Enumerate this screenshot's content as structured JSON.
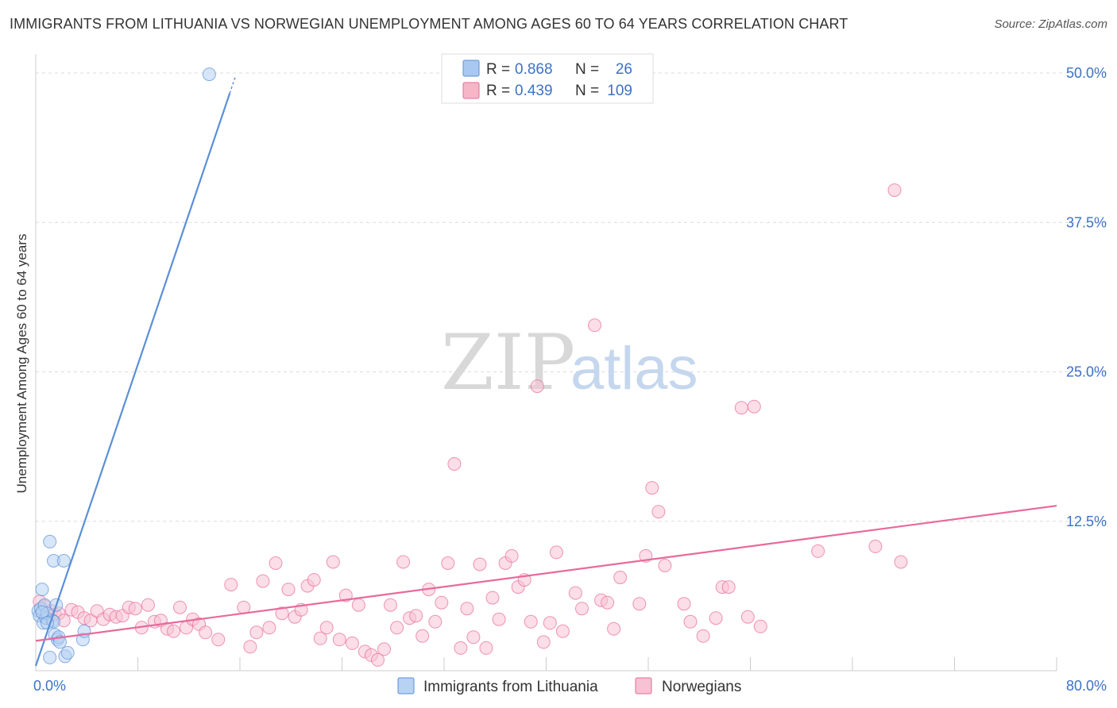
{
  "title": "IMMIGRANTS FROM LITHUANIA VS NORWEGIAN UNEMPLOYMENT AMONG AGES 60 TO 64 YEARS CORRELATION CHART",
  "source": "Source: ZipAtlas.com",
  "watermark": {
    "zip": "ZIP",
    "atlas": "atlas"
  },
  "legend_top": [
    {
      "r_label": "R =",
      "r_value": "0.868",
      "n_label": "N =",
      "n_value": "26",
      "color": "#a9c8f0"
    },
    {
      "r_label": "R =",
      "r_value": "0.439",
      "n_label": "N =",
      "n_value": "109",
      "color": "#f6b6c8"
    }
  ],
  "chart_data": {
    "type": "scatter",
    "title": "IMMIGRANTS FROM LITHUANIA VS NORWEGIAN UNEMPLOYMENT AMONG AGES 60 TO 64 YEARS CORRELATION CHART",
    "xlabel": "",
    "ylabel": "Unemployment Among Ages 60 to 64 years",
    "xlim": [
      0,
      80
    ],
    "ylim": [
      0,
      51
    ],
    "x_tick_labels": [
      "0.0%",
      "80.0%"
    ],
    "y_ticks": [
      12.5,
      25.0,
      37.5,
      50.0
    ],
    "y_tick_labels": [
      "12.5%",
      "25.0%",
      "37.5%",
      "50.0%"
    ],
    "grid": true,
    "series": [
      {
        "name": "Immigrants from Lithuania",
        "color": "#5b8fd6",
        "fill": "#b7d2f3",
        "points": [
          [
            0.2,
            5.0
          ],
          [
            0.3,
            4.6
          ],
          [
            0.4,
            5.2
          ],
          [
            0.5,
            6.8
          ],
          [
            0.6,
            4.0
          ],
          [
            0.7,
            5.5
          ],
          [
            0.8,
            4.4
          ],
          [
            0.9,
            4.8
          ],
          [
            1.1,
            10.8
          ],
          [
            1.3,
            4.2
          ],
          [
            1.4,
            9.2
          ],
          [
            1.5,
            3.0
          ],
          [
            1.6,
            5.5
          ],
          [
            1.7,
            2.6
          ],
          [
            1.8,
            2.8
          ],
          [
            1.9,
            2.4
          ],
          [
            2.2,
            9.2
          ],
          [
            2.3,
            1.2
          ],
          [
            2.5,
            1.5
          ],
          [
            3.7,
            2.6
          ],
          [
            3.8,
            3.3
          ],
          [
            13.6,
            49.9
          ],
          [
            1.1,
            1.1
          ],
          [
            0.5,
            4.9
          ],
          [
            1.4,
            4.1
          ],
          [
            0.9,
            4.0
          ]
        ],
        "trend": {
          "x0": 0.0,
          "y0": 0.4,
          "x1": 15.2,
          "y1": 48.3
        }
      },
      {
        "name": "Norwegians",
        "color": "#e86a9a",
        "fill": "#f7c2d3",
        "points": [
          [
            0.3,
            5.8
          ],
          [
            0.5,
            4.9
          ],
          [
            0.7,
            5.4
          ],
          [
            0.9,
            4.4
          ],
          [
            1.2,
            5.0
          ],
          [
            1.5,
            4.7
          ],
          [
            1.8,
            4.8
          ],
          [
            2.2,
            4.2
          ],
          [
            2.8,
            5.1
          ],
          [
            3.3,
            4.9
          ],
          [
            3.8,
            4.4
          ],
          [
            4.3,
            4.2
          ],
          [
            4.8,
            5.0
          ],
          [
            5.3,
            4.3
          ],
          [
            5.8,
            4.7
          ],
          [
            6.3,
            4.5
          ],
          [
            6.8,
            4.6
          ],
          [
            7.3,
            5.3
          ],
          [
            7.8,
            5.2
          ],
          [
            8.3,
            3.6
          ],
          [
            8.8,
            5.5
          ],
          [
            9.3,
            4.1
          ],
          [
            9.8,
            4.2
          ],
          [
            10.3,
            3.5
          ],
          [
            10.8,
            3.3
          ],
          [
            11.3,
            5.3
          ],
          [
            11.8,
            3.6
          ],
          [
            12.3,
            4.3
          ],
          [
            12.8,
            3.9
          ],
          [
            13.3,
            3.2
          ],
          [
            14.3,
            2.6
          ],
          [
            15.3,
            7.2
          ],
          [
            16.3,
            5.3
          ],
          [
            16.8,
            2.0
          ],
          [
            17.3,
            3.2
          ],
          [
            17.8,
            7.5
          ],
          [
            18.3,
            3.6
          ],
          [
            18.8,
            9.0
          ],
          [
            19.3,
            4.8
          ],
          [
            19.8,
            6.8
          ],
          [
            20.3,
            4.5
          ],
          [
            20.8,
            5.1
          ],
          [
            21.3,
            7.1
          ],
          [
            21.8,
            7.6
          ],
          [
            22.3,
            2.7
          ],
          [
            22.8,
            3.6
          ],
          [
            23.3,
            9.1
          ],
          [
            23.8,
            2.6
          ],
          [
            24.3,
            6.3
          ],
          [
            24.8,
            2.3
          ],
          [
            25.3,
            5.5
          ],
          [
            25.8,
            1.6
          ],
          [
            26.3,
            1.3
          ],
          [
            26.8,
            0.9
          ],
          [
            27.3,
            1.8
          ],
          [
            27.8,
            5.5
          ],
          [
            28.3,
            3.6
          ],
          [
            28.8,
            9.1
          ],
          [
            29.3,
            4.4
          ],
          [
            29.8,
            4.6
          ],
          [
            30.3,
            2.9
          ],
          [
            30.8,
            6.8
          ],
          [
            31.3,
            4.1
          ],
          [
            31.8,
            5.7
          ],
          [
            32.3,
            9.0
          ],
          [
            32.8,
            17.3
          ],
          [
            33.3,
            1.9
          ],
          [
            33.8,
            5.2
          ],
          [
            34.3,
            2.8
          ],
          [
            34.8,
            8.9
          ],
          [
            35.3,
            1.9
          ],
          [
            35.8,
            6.1
          ],
          [
            36.3,
            4.3
          ],
          [
            36.8,
            9.0
          ],
          [
            37.3,
            9.6
          ],
          [
            37.8,
            7.0
          ],
          [
            38.3,
            7.6
          ],
          [
            38.8,
            4.1
          ],
          [
            39.3,
            23.8
          ],
          [
            39.8,
            2.4
          ],
          [
            40.3,
            4.0
          ],
          [
            40.8,
            9.9
          ],
          [
            41.3,
            3.3
          ],
          [
            42.3,
            6.5
          ],
          [
            42.8,
            5.2
          ],
          [
            43.8,
            28.9
          ],
          [
            44.3,
            5.9
          ],
          [
            44.8,
            5.7
          ],
          [
            45.3,
            3.5
          ],
          [
            45.8,
            7.8
          ],
          [
            47.3,
            5.6
          ],
          [
            47.8,
            9.6
          ],
          [
            48.3,
            15.3
          ],
          [
            48.8,
            13.3
          ],
          [
            49.3,
            8.8
          ],
          [
            50.8,
            5.6
          ],
          [
            51.3,
            4.1
          ],
          [
            52.3,
            2.9
          ],
          [
            53.3,
            4.4
          ],
          [
            53.8,
            7.0
          ],
          [
            54.3,
            7.0
          ],
          [
            55.3,
            22.0
          ],
          [
            55.8,
            4.5
          ],
          [
            56.3,
            22.1
          ],
          [
            56.8,
            3.7
          ],
          [
            61.3,
            10.0
          ],
          [
            65.8,
            10.4
          ],
          [
            67.3,
            40.2
          ],
          [
            67.8,
            9.1
          ]
        ],
        "trend": {
          "x0": 0.0,
          "y0": 2.5,
          "x1": 80.0,
          "y1": 13.8
        }
      }
    ],
    "legend_position": "bottom-center"
  }
}
